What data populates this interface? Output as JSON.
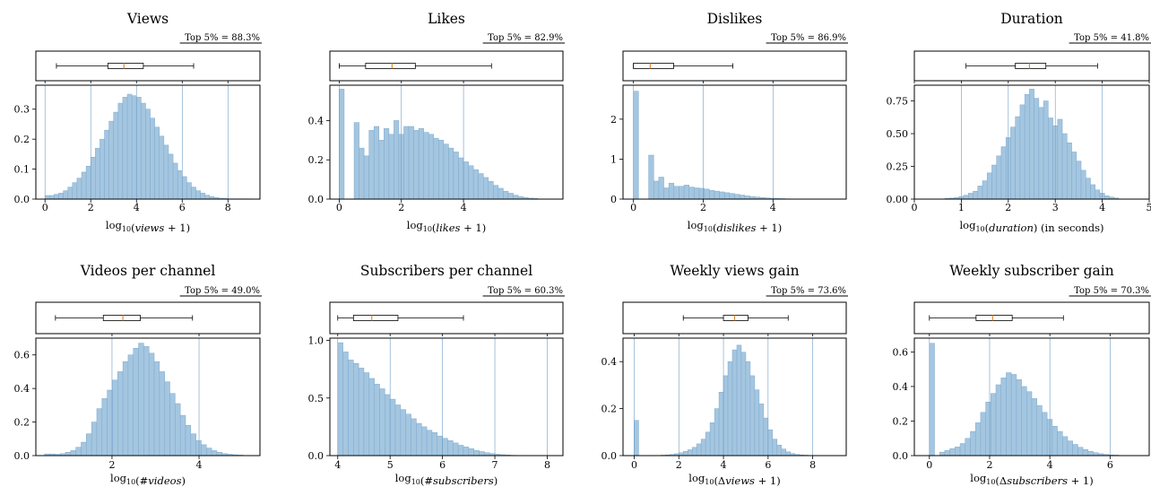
{
  "figure": {
    "accent_colors": {
      "bar_fill": "#a4c6e0",
      "bar_edge": "#7fa9cd",
      "median_line": "#e08a2c"
    }
  },
  "chart_data": [
    {
      "type": "bar",
      "title": "Views",
      "xlabel": "log10(views + 1)",
      "top5_label": "Top 5% = 88.3%",
      "xlim": [
        -0.4,
        9.4
      ],
      "ylim": [
        0,
        0.38
      ],
      "xticks": [
        0,
        2,
        4,
        6,
        8
      ],
      "xtick_labels": [
        "0",
        "2",
        "4",
        "6",
        "8"
      ],
      "yticks": [
        0,
        0.1,
        0.2,
        0.3
      ],
      "ytick_labels": [
        "0.0",
        "0.1",
        "0.2",
        "0.3"
      ],
      "boxplot": {
        "whisker_low": 0.5,
        "q1": 2.75,
        "median": 3.45,
        "q3": 4.3,
        "whisker_high": 6.5
      },
      "bins": {
        "start": 0,
        "width": 0.2,
        "values": [
          0.012,
          0.012,
          0.016,
          0.02,
          0.028,
          0.04,
          0.055,
          0.07,
          0.09,
          0.11,
          0.14,
          0.17,
          0.2,
          0.23,
          0.26,
          0.29,
          0.32,
          0.34,
          0.35,
          0.345,
          0.34,
          0.32,
          0.3,
          0.27,
          0.24,
          0.21,
          0.18,
          0.15,
          0.12,
          0.095,
          0.075,
          0.055,
          0.04,
          0.028,
          0.02,
          0.013,
          0.008,
          0.005,
          0.003,
          0.002,
          0.001,
          0.001,
          0.001,
          0.001,
          0.001
        ]
      }
    },
    {
      "type": "bar",
      "title": "Likes",
      "xlabel": "log10(likes + 1)",
      "top5_label": "Top 5% = 82.9%",
      "xlim": [
        -0.3,
        7.2
      ],
      "ylim": [
        0,
        0.58
      ],
      "xticks": [
        0,
        2,
        4
      ],
      "xtick_labels": [
        "0",
        "2",
        "4"
      ],
      "yticks": [
        0,
        0.2,
        0.4
      ],
      "ytick_labels": [
        "0.0",
        "0.2",
        "0.4"
      ],
      "boxplot": {
        "whisker_low": 0.0,
        "q1": 0.85,
        "median": 1.7,
        "q3": 2.45,
        "whisker_high": 4.9
      },
      "bins": {
        "start": 0,
        "width": 0.16,
        "values": [
          0.56,
          0,
          0,
          0.39,
          0.26,
          0.22,
          0.35,
          0.37,
          0.3,
          0.36,
          0.33,
          0.4,
          0.33,
          0.37,
          0.37,
          0.35,
          0.36,
          0.34,
          0.33,
          0.31,
          0.3,
          0.28,
          0.26,
          0.24,
          0.21,
          0.19,
          0.17,
          0.15,
          0.13,
          0.11,
          0.09,
          0.07,
          0.055,
          0.04,
          0.03,
          0.02,
          0.013,
          0.008,
          0.005,
          0.003
        ]
      }
    },
    {
      "type": "bar",
      "title": "Dislikes",
      "xlabel": "log10(dislikes + 1)",
      "top5_label": "Top 5% = 86.9%",
      "xlim": [
        -0.3,
        6.1
      ],
      "ylim": [
        0,
        2.85
      ],
      "xticks": [
        0,
        2,
        4
      ],
      "xtick_labels": [
        "0",
        "2",
        "4"
      ],
      "yticks": [
        0,
        1,
        2
      ],
      "ytick_labels": [
        "0",
        "1",
        "2"
      ],
      "boxplot": {
        "whisker_low": 0.0,
        "q1": 0.0,
        "median": 0.48,
        "q3": 1.15,
        "whisker_high": 2.85
      },
      "bins": {
        "start": 0,
        "width": 0.145,
        "values": [
          2.7,
          0,
          0,
          1.1,
          0.45,
          0.55,
          0.28,
          0.4,
          0.32,
          0.32,
          0.35,
          0.3,
          0.28,
          0.27,
          0.25,
          0.22,
          0.2,
          0.18,
          0.16,
          0.14,
          0.12,
          0.1,
          0.08,
          0.065,
          0.05,
          0.04,
          0.03,
          0.022,
          0.016,
          0.012,
          0.008,
          0.005,
          0.003,
          0.002
        ]
      }
    },
    {
      "type": "bar",
      "title": "Duration",
      "xlabel": "log10(duration) (in seconds)",
      "top5_label": "Top 5% = 41.8%",
      "xlim": [
        0,
        5
      ],
      "ylim": [
        0,
        0.87
      ],
      "xticks": [
        0,
        1,
        2,
        3,
        4,
        5
      ],
      "xtick_labels": [
        "0",
        "1",
        "2",
        "3",
        "4",
        "5"
      ],
      "yticks": [
        0,
        0.25,
        0.5,
        0.75
      ],
      "ytick_labels": [
        "0.00",
        "0.25",
        "0.50",
        "0.75"
      ],
      "boxplot": {
        "whisker_low": 1.1,
        "q1": 2.15,
        "median": 2.45,
        "q3": 2.8,
        "whisker_high": 3.9
      },
      "bins": {
        "start": 0.65,
        "width": 0.1,
        "values": [
          0.005,
          0.008,
          0.012,
          0.02,
          0.03,
          0.045,
          0.06,
          0.1,
          0.14,
          0.2,
          0.26,
          0.33,
          0.4,
          0.47,
          0.55,
          0.63,
          0.72,
          0.8,
          0.84,
          0.77,
          0.7,
          0.75,
          0.62,
          0.56,
          0.61,
          0.5,
          0.43,
          0.36,
          0.29,
          0.22,
          0.16,
          0.11,
          0.07,
          0.045,
          0.025,
          0.015,
          0.008
        ]
      }
    },
    {
      "type": "bar",
      "title": "Videos per channel",
      "xlabel": "log10(#videos)",
      "top5_label": "Top 5% = 49.0%",
      "xlim": [
        0.25,
        5.4
      ],
      "ylim": [
        0,
        0.7
      ],
      "xticks": [
        2,
        4
      ],
      "xtick_labels": [
        "2",
        "4"
      ],
      "yticks": [
        0,
        0.2,
        0.4,
        0.6
      ],
      "ytick_labels": [
        "0.0",
        "0.2",
        "0.4",
        "0.6"
      ],
      "boxplot": {
        "whisker_low": 0.7,
        "q1": 1.8,
        "median": 2.25,
        "q3": 2.65,
        "whisker_high": 3.85
      },
      "bins": {
        "start": 0.45,
        "width": 0.12,
        "values": [
          0.01,
          0.01,
          0.008,
          0.012,
          0.02,
          0.03,
          0.05,
          0.08,
          0.13,
          0.2,
          0.28,
          0.34,
          0.39,
          0.45,
          0.5,
          0.56,
          0.6,
          0.64,
          0.67,
          0.65,
          0.61,
          0.56,
          0.5,
          0.44,
          0.37,
          0.31,
          0.24,
          0.18,
          0.13,
          0.09,
          0.065,
          0.045,
          0.03,
          0.02,
          0.012,
          0.008,
          0.005,
          0.003
        ]
      }
    },
    {
      "type": "bar",
      "title": "Subscribers per channel",
      "xlabel": "log10(#subscribers)",
      "top5_label": "Top 5% = 60.3%",
      "xlim": [
        3.85,
        8.3
      ],
      "ylim": [
        0,
        1.02
      ],
      "xticks": [
        4,
        5,
        6,
        7,
        8
      ],
      "xtick_labels": [
        "4",
        "5",
        "6",
        "7",
        "8"
      ],
      "yticks": [
        0,
        0.5,
        1.0
      ],
      "ytick_labels": [
        "0.0",
        "0.5",
        "1.0"
      ],
      "boxplot": {
        "whisker_low": 4.0,
        "q1": 4.3,
        "median": 4.65,
        "q3": 5.15,
        "whisker_high": 6.4
      },
      "bins": {
        "start": 4.0,
        "width": 0.1,
        "values": [
          0.98,
          0.9,
          0.83,
          0.8,
          0.76,
          0.72,
          0.67,
          0.62,
          0.58,
          0.53,
          0.49,
          0.44,
          0.4,
          0.36,
          0.32,
          0.28,
          0.25,
          0.22,
          0.2,
          0.17,
          0.15,
          0.13,
          0.11,
          0.09,
          0.075,
          0.06,
          0.045,
          0.035,
          0.025,
          0.018,
          0.012,
          0.008,
          0.005,
          0.003,
          0.002
        ]
      }
    },
    {
      "type": "bar",
      "title": "Weekly views gain",
      "xlabel": "log10(Δviews + 1)",
      "top5_label": "Top 5% = 73.6%",
      "xlim": [
        -0.5,
        9.5
      ],
      "ylim": [
        0,
        0.5
      ],
      "xticks": [
        0,
        2,
        4,
        6,
        8
      ],
      "xtick_labels": [
        "0",
        "2",
        "4",
        "6",
        "8"
      ],
      "yticks": [
        0,
        0.2,
        0.4
      ],
      "ytick_labels": [
        "0.0",
        "0.2",
        "0.4"
      ],
      "boxplot": {
        "whisker_low": 2.2,
        "q1": 4.0,
        "median": 4.5,
        "q3": 5.1,
        "whisker_high": 6.9
      },
      "bins": {
        "start": 0,
        "width": 0.2,
        "values": [
          0.15,
          0,
          0,
          0,
          0,
          0,
          0.002,
          0.003,
          0.005,
          0.008,
          0.012,
          0.018,
          0.025,
          0.035,
          0.05,
          0.07,
          0.1,
          0.14,
          0.2,
          0.27,
          0.34,
          0.4,
          0.45,
          0.47,
          0.44,
          0.4,
          0.34,
          0.28,
          0.22,
          0.16,
          0.11,
          0.07,
          0.045,
          0.028,
          0.016,
          0.009,
          0.005,
          0.003,
          0.002,
          0.001
        ]
      }
    },
    {
      "type": "bar",
      "title": "Weekly subscriber gain",
      "xlabel": "log10(Δsubscribers + 1)",
      "top5_label": "Top 5% = 70.3%",
      "xlim": [
        -0.5,
        7.3
      ],
      "ylim": [
        0,
        0.68
      ],
      "xticks": [
        0,
        2,
        4,
        6
      ],
      "xtick_labels": [
        "0",
        "2",
        "4",
        "6"
      ],
      "yticks": [
        0,
        0.2,
        0.4,
        0.6
      ],
      "ytick_labels": [
        "0.0",
        "0.2",
        "0.4",
        "0.6"
      ],
      "boxplot": {
        "whisker_low": 0.0,
        "q1": 1.55,
        "median": 2.1,
        "q3": 2.75,
        "whisker_high": 4.45
      },
      "bins": {
        "start": 0,
        "width": 0.17,
        "values": [
          0.65,
          0,
          0.02,
          0.03,
          0.04,
          0.05,
          0.07,
          0.1,
          0.14,
          0.19,
          0.25,
          0.31,
          0.36,
          0.41,
          0.45,
          0.48,
          0.47,
          0.44,
          0.4,
          0.37,
          0.33,
          0.29,
          0.25,
          0.21,
          0.17,
          0.14,
          0.11,
          0.085,
          0.065,
          0.048,
          0.035,
          0.025,
          0.017,
          0.011,
          0.007,
          0.004,
          0.003
        ]
      }
    }
  ]
}
